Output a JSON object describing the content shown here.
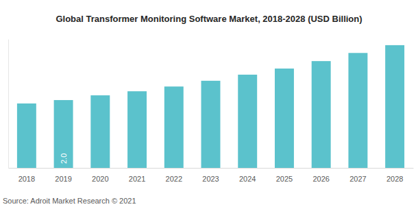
{
  "chart_data": {
    "type": "bar",
    "title": "Global Transformer Monitoring Software Market, 2018-2028 (USD Billion)",
    "source": "Source: Adroit Market Research © 2021",
    "categories": [
      "2018",
      "2019",
      "2020",
      "2021",
      "2022",
      "2023",
      "2024",
      "2025",
      "2026",
      "2027",
      "2028"
    ],
    "values": [
      1.9,
      2.0,
      2.14,
      2.26,
      2.4,
      2.57,
      2.75,
      2.93,
      3.15,
      3.39,
      3.62
    ],
    "value_labels": [
      null,
      "2.0",
      null,
      null,
      null,
      null,
      null,
      null,
      null,
      null,
      null
    ],
    "data_labels": true,
    "color": "#5bc2cc",
    "ylim": [
      0,
      3.8
    ],
    "yticks": [],
    "tick_labels": "x",
    "grid": false
  }
}
